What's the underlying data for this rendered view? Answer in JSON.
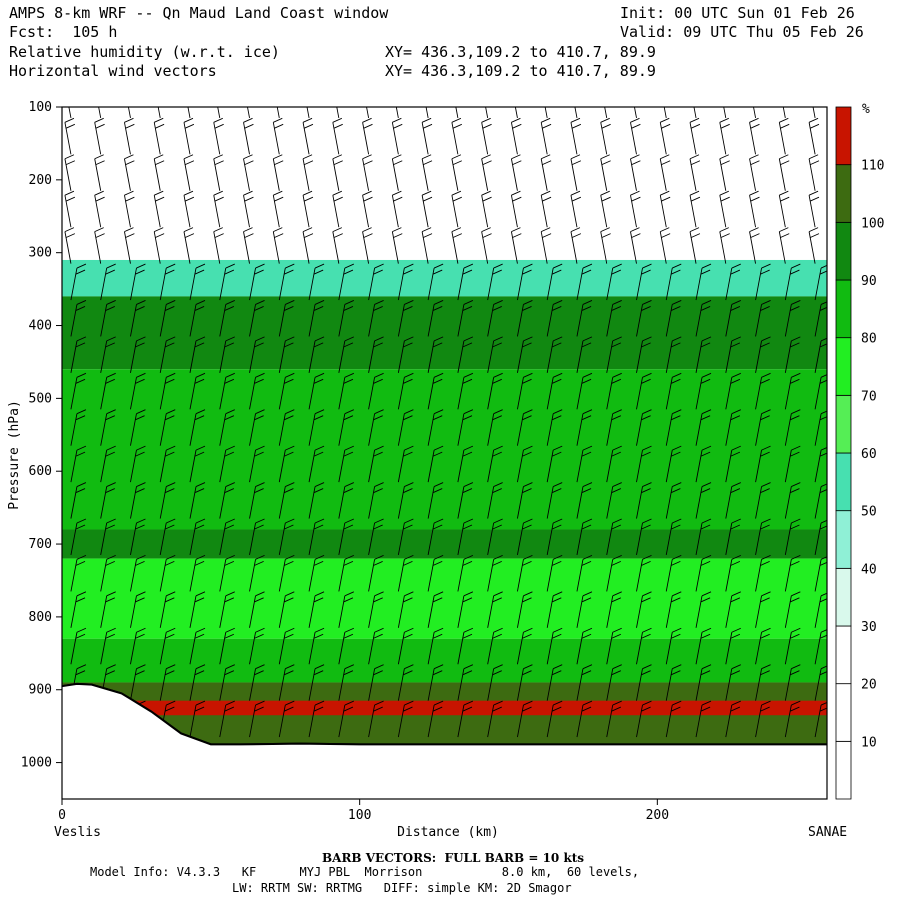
{
  "header": {
    "title": "AMPS 8-km WRF -- Qn Maud Land Coast window",
    "forecast": "Fcst:  105 h",
    "field1": "Relative humidity (w.r.t. ice)",
    "field2": "Horizontal wind vectors",
    "xy1": "XY= 436.3,109.2 to 410.7, 89.9",
    "xy2": "XY= 436.3,109.2 to 410.7, 89.9",
    "init": "Init: 00 UTC Sun 01 Feb 26",
    "valid": "Valid: 09 UTC Thu 05 Feb 26"
  },
  "footer": {
    "barb_note": "BARB VECTORS:  FULL BARB = 10 kts",
    "model_info": "Model Info: V4.3.3   KF      MYJ PBL  Morrison           8.0 km,  60 levels,",
    "model_info2": "LW: RRTM SW: RRTMG   DIFF: simple KM: 2D Smagor"
  },
  "chart_data": {
    "type": "heatmap",
    "ylabel": "Pressure (hPa)",
    "xlabel": "Distance (km)",
    "x_left_label": "Veslis",
    "x_right_label": "SANAE",
    "xlim": [
      0,
      257
    ],
    "ylim": [
      1050,
      100
    ],
    "x_ticks": [
      0,
      100,
      200
    ],
    "y_ticks": [
      100,
      200,
      300,
      400,
      500,
      600,
      700,
      800,
      900,
      1000
    ],
    "colorbar": {
      "unit": "%",
      "levels": [
        10,
        20,
        30,
        40,
        50,
        60,
        70,
        80,
        90,
        100,
        110
      ],
      "colors": [
        "#ffffff",
        "#ffffff",
        "#ffffff",
        "#d9f9ec",
        "#8ff0d6",
        "#47e0b0",
        "#55ee55",
        "#22ee22",
        "#11bb11",
        "#118811",
        "#3d6b11",
        "#c81400"
      ]
    },
    "rh_layers": [
      {
        "name": "dry-upper",
        "top": 100,
        "bottom": 310,
        "rh": 10
      },
      {
        "name": "transition",
        "top": 310,
        "bottom": 360,
        "rh": 55
      },
      {
        "name": "moist-upper",
        "top": 360,
        "bottom": 460,
        "rh": 92
      },
      {
        "name": "mid",
        "top": 460,
        "bottom": 680,
        "rh": 82
      },
      {
        "name": "mid-moist",
        "top": 680,
        "bottom": 720,
        "rh": 92
      },
      {
        "name": "low-mid",
        "top": 720,
        "bottom": 830,
        "rh": 75
      },
      {
        "name": "low",
        "top": 830,
        "bottom": 890,
        "rh": 85
      },
      {
        "name": "bl",
        "top": 890,
        "bottom": 975,
        "rh": 103
      },
      {
        "name": "supersat",
        "top": 915,
        "bottom": 935,
        "rh": 112
      }
    ],
    "terrain": {
      "x": [
        0,
        5,
        10,
        20,
        30,
        40,
        50,
        60,
        80,
        100,
        120,
        150,
        200,
        257
      ],
      "p": [
        895,
        892,
        893,
        905,
        930,
        960,
        975,
        975,
        974,
        975,
        975,
        975,
        975,
        975
      ]
    }
  }
}
